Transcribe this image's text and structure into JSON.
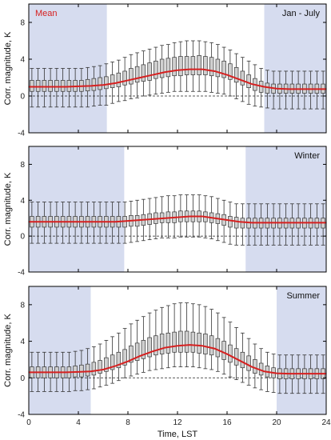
{
  "colors": {
    "night_band": "#d6dcef",
    "mean_line": "#d62020",
    "box_fill": "#d0d0d0",
    "box_stroke": "#333333",
    "axis": "#000000"
  },
  "chart_data": [
    {
      "type": "box",
      "panel_label": "Jan - July",
      "legend": "Mean",
      "ylabel": "Corr. magnitude, K",
      "xlim": [
        0,
        24
      ],
      "ylim": [
        -4,
        10
      ],
      "yticks": [
        -4,
        0,
        4,
        8
      ],
      "xticks": [
        0,
        4,
        8,
        12,
        16,
        20,
        24
      ],
      "zero_line": "dashed",
      "night_bands": [
        [
          0,
          6.3
        ],
        [
          19,
          24
        ]
      ],
      "box_hours": [
        0.25,
        0.75,
        1.25,
        1.75,
        2.25,
        2.75,
        3.25,
        3.75,
        4.25,
        4.75,
        5.25,
        5.75,
        6.25,
        6.75,
        7.25,
        7.75,
        8.25,
        8.75,
        9.25,
        9.75,
        10.25,
        10.75,
        11.25,
        11.75,
        12.25,
        12.75,
        13.25,
        13.75,
        14.25,
        14.75,
        15.25,
        15.75,
        16.25,
        16.75,
        17.25,
        17.75,
        18.25,
        18.75,
        19.25,
        19.75,
        20.25,
        20.75,
        21.25,
        21.75,
        22.25,
        22.75,
        23.25,
        23.75
      ],
      "q1": [
        0.5,
        0.5,
        0.5,
        0.5,
        0.5,
        0.5,
        0.5,
        0.5,
        0.5,
        0.55,
        0.6,
        0.7,
        0.8,
        0.9,
        1.0,
        1.2,
        1.3,
        1.5,
        1.6,
        1.7,
        1.9,
        2.0,
        2.1,
        2.2,
        2.2,
        2.3,
        2.3,
        2.3,
        2.3,
        2.2,
        2.1,
        2.0,
        1.8,
        1.5,
        1.2,
        0.9,
        0.6,
        0.4,
        0.3,
        0.3,
        0.3,
        0.3,
        0.3,
        0.3,
        0.3,
        0.3,
        0.3,
        0.3
      ],
      "q3": [
        1.7,
        1.7,
        1.7,
        1.7,
        1.7,
        1.7,
        1.7,
        1.7,
        1.7,
        1.8,
        1.9,
        2.0,
        2.1,
        2.3,
        2.5,
        2.7,
        3.0,
        3.2,
        3.4,
        3.6,
        3.8,
        4.0,
        4.1,
        4.2,
        4.3,
        4.3,
        4.3,
        4.4,
        4.3,
        4.2,
        4.0,
        3.8,
        3.5,
        3.1,
        2.7,
        2.3,
        1.9,
        1.6,
        1.4,
        1.3,
        1.3,
        1.3,
        1.3,
        1.3,
        1.3,
        1.3,
        1.3,
        1.3
      ],
      "whisker_low": [
        -1.2,
        -1.2,
        -1.2,
        -1.2,
        -1.2,
        -1.2,
        -1.2,
        -1.2,
        -1.2,
        -1.2,
        -1.1,
        -1.0,
        -1.0,
        -0.8,
        -0.6,
        -0.5,
        -0.3,
        -0.2,
        0.0,
        0.1,
        0.2,
        0.3,
        0.4,
        0.5,
        0.5,
        0.5,
        0.5,
        0.5,
        0.5,
        0.4,
        0.3,
        0.2,
        0.0,
        -0.3,
        -0.6,
        -0.9,
        -1.1,
        -1.2,
        -1.3,
        -1.4,
        -1.4,
        -1.4,
        -1.4,
        -1.4,
        -1.4,
        -1.4,
        -1.4,
        -1.4
      ],
      "whisker_high": [
        3.0,
        3.0,
        3.0,
        3.0,
        3.0,
        3.0,
        3.0,
        3.0,
        3.0,
        3.1,
        3.2,
        3.3,
        3.5,
        3.7,
        3.9,
        4.2,
        4.5,
        4.7,
        4.9,
        5.1,
        5.3,
        5.5,
        5.6,
        5.8,
        5.9,
        6.0,
        6.0,
        6.0,
        5.9,
        5.8,
        5.6,
        5.3,
        5.0,
        4.6,
        4.2,
        3.8,
        3.4,
        3.0,
        2.8,
        2.7,
        2.7,
        2.7,
        2.7,
        2.7,
        2.7,
        2.7,
        2.7,
        2.7
      ],
      "mean_x": [
        0,
        1,
        2,
        3,
        4,
        5,
        6,
        7,
        8,
        9,
        10,
        11,
        12,
        13,
        14,
        15,
        16,
        17,
        18,
        19,
        20,
        21,
        22,
        23,
        24
      ],
      "mean_y": [
        1.0,
        1.0,
        1.0,
        1.0,
        1.05,
        1.1,
        1.2,
        1.4,
        1.7,
        2.0,
        2.3,
        2.6,
        2.8,
        2.9,
        2.9,
        2.7,
        2.3,
        1.8,
        1.3,
        1.0,
        0.8,
        0.75,
        0.75,
        0.75,
        0.75
      ]
    },
    {
      "type": "box",
      "panel_label": "Winter",
      "ylabel": "Corr. magnitude, K",
      "xlim": [
        0,
        24
      ],
      "ylim": [
        -4,
        10
      ],
      "yticks": [
        -4,
        0,
        4,
        8
      ],
      "xticks": [
        0,
        4,
        8,
        12,
        16,
        20,
        24
      ],
      "zero_line": "dashed",
      "night_bands": [
        [
          0,
          7.7
        ],
        [
          17.5,
          24
        ]
      ],
      "box_hours": [
        0.25,
        0.75,
        1.25,
        1.75,
        2.25,
        2.75,
        3.25,
        3.75,
        4.25,
        4.75,
        5.25,
        5.75,
        6.25,
        6.75,
        7.25,
        7.75,
        8.25,
        8.75,
        9.25,
        9.75,
        10.25,
        10.75,
        11.25,
        11.75,
        12.25,
        12.75,
        13.25,
        13.75,
        14.25,
        14.75,
        15.25,
        15.75,
        16.25,
        16.75,
        17.25,
        17.75,
        18.25,
        18.75,
        19.25,
        19.75,
        20.25,
        20.75,
        21.25,
        21.75,
        22.25,
        22.75,
        23.25,
        23.75
      ],
      "q1": [
        1.0,
        1.0,
        1.0,
        1.0,
        1.0,
        1.0,
        1.0,
        1.0,
        1.0,
        1.0,
        1.0,
        1.0,
        1.0,
        1.0,
        1.0,
        1.0,
        1.1,
        1.1,
        1.2,
        1.3,
        1.4,
        1.5,
        1.5,
        1.5,
        1.6,
        1.6,
        1.6,
        1.6,
        1.6,
        1.5,
        1.4,
        1.2,
        1.0,
        0.9,
        0.9,
        0.9,
        0.9,
        0.9,
        0.9,
        0.9,
        0.9,
        0.9,
        0.9,
        0.9,
        0.9,
        0.9,
        0.9,
        0.9
      ],
      "q3": [
        2.2,
        2.2,
        2.2,
        2.2,
        2.2,
        2.2,
        2.2,
        2.2,
        2.2,
        2.2,
        2.2,
        2.2,
        2.2,
        2.2,
        2.2,
        2.2,
        2.3,
        2.3,
        2.4,
        2.5,
        2.6,
        2.6,
        2.7,
        2.7,
        2.8,
        2.8,
        2.8,
        2.8,
        2.7,
        2.6,
        2.5,
        2.4,
        2.2,
        2.1,
        2.0,
        2.0,
        2.0,
        2.0,
        2.0,
        2.0,
        2.0,
        2.0,
        2.0,
        2.0,
        2.0,
        2.0,
        2.0,
        2.0
      ],
      "whisker_low": [
        -0.8,
        -0.8,
        -0.8,
        -0.8,
        -0.8,
        -0.8,
        -0.8,
        -0.8,
        -0.8,
        -0.8,
        -0.8,
        -0.8,
        -0.8,
        -0.8,
        -0.8,
        -0.8,
        -0.7,
        -0.6,
        -0.5,
        -0.4,
        -0.3,
        -0.2,
        -0.2,
        -0.2,
        -0.1,
        -0.1,
        -0.1,
        -0.1,
        -0.2,
        -0.3,
        -0.5,
        -0.7,
        -0.9,
        -1.0,
        -1.0,
        -1.0,
        -1.0,
        -1.0,
        -1.0,
        -1.0,
        -1.0,
        -1.0,
        -1.0,
        -1.0,
        -1.0,
        -1.0,
        -1.0,
        -1.0
      ],
      "whisker_high": [
        3.8,
        3.8,
        3.8,
        3.8,
        3.8,
        3.8,
        3.8,
        3.8,
        3.8,
        3.8,
        3.8,
        3.8,
        3.8,
        3.8,
        3.8,
        3.8,
        3.9,
        4.0,
        4.1,
        4.2,
        4.3,
        4.4,
        4.5,
        4.5,
        4.6,
        4.6,
        4.6,
        4.6,
        4.5,
        4.4,
        4.2,
        4.0,
        3.8,
        3.6,
        3.6,
        3.6,
        3.6,
        3.6,
        3.6,
        3.6,
        3.6,
        3.6,
        3.6,
        3.6,
        3.6,
        3.6,
        3.6,
        3.6
      ],
      "mean_x": [
        0,
        1,
        2,
        3,
        4,
        5,
        6,
        7,
        8,
        9,
        10,
        11,
        12,
        13,
        14,
        15,
        16,
        17,
        18,
        19,
        20,
        21,
        22,
        23,
        24
      ],
      "mean_y": [
        1.6,
        1.6,
        1.6,
        1.6,
        1.6,
        1.6,
        1.6,
        1.6,
        1.7,
        1.8,
        1.9,
        2.0,
        2.1,
        2.2,
        2.2,
        2.0,
        1.8,
        1.6,
        1.5,
        1.5,
        1.5,
        1.5,
        1.5,
        1.5,
        1.5
      ]
    },
    {
      "type": "box",
      "panel_label": "Summer",
      "ylabel": "Corr. magnitude, K",
      "xlabel": "Time, LST",
      "xlim": [
        0,
        24
      ],
      "ylim": [
        -4,
        10
      ],
      "yticks": [
        -4,
        0,
        4,
        8
      ],
      "xticks": [
        0,
        4,
        8,
        12,
        16,
        20,
        24
      ],
      "zero_line": "dashed",
      "night_bands": [
        [
          0,
          5.0
        ],
        [
          20,
          24
        ]
      ],
      "box_hours": [
        0.25,
        0.75,
        1.25,
        1.75,
        2.25,
        2.75,
        3.25,
        3.75,
        4.25,
        4.75,
        5.25,
        5.75,
        6.25,
        6.75,
        7.25,
        7.75,
        8.25,
        8.75,
        9.25,
        9.75,
        10.25,
        10.75,
        11.25,
        11.75,
        12.25,
        12.75,
        13.25,
        13.75,
        14.25,
        14.75,
        15.25,
        15.75,
        16.25,
        16.75,
        17.25,
        17.75,
        18.25,
        18.75,
        19.25,
        19.75,
        20.25,
        20.75,
        21.25,
        21.75,
        22.25,
        22.75,
        23.25,
        23.75
      ],
      "q1": [
        0.0,
        0.0,
        0.0,
        0.0,
        0.0,
        0.0,
        0.0,
        0.1,
        0.1,
        0.2,
        0.3,
        0.5,
        0.7,
        0.9,
        1.1,
        1.4,
        1.7,
        1.9,
        2.1,
        2.3,
        2.5,
        2.6,
        2.7,
        2.8,
        2.8,
        2.8,
        2.8,
        2.7,
        2.6,
        2.5,
        2.3,
        2.0,
        1.7,
        1.4,
        1.1,
        0.8,
        0.5,
        0.3,
        0.1,
        0.0,
        -0.1,
        -0.1,
        -0.1,
        -0.1,
        -0.1,
        -0.1,
        -0.1,
        -0.1
      ],
      "q3": [
        1.2,
        1.2,
        1.2,
        1.2,
        1.2,
        1.2,
        1.2,
        1.3,
        1.4,
        1.5,
        1.7,
        1.9,
        2.2,
        2.5,
        2.8,
        3.1,
        3.5,
        3.8,
        4.1,
        4.4,
        4.6,
        4.8,
        4.9,
        5.0,
        5.1,
        5.1,
        5.0,
        4.9,
        4.8,
        4.6,
        4.3,
        4.0,
        3.6,
        3.2,
        2.8,
        2.4,
        2.0,
        1.6,
        1.3,
        1.1,
        1.0,
        1.0,
        1.0,
        1.0,
        1.0,
        1.0,
        1.0,
        1.0
      ],
      "whisker_low": [
        -1.5,
        -1.5,
        -1.5,
        -1.5,
        -1.5,
        -1.5,
        -1.5,
        -1.4,
        -1.4,
        -1.3,
        -1.2,
        -1.0,
        -0.8,
        -0.6,
        -0.3,
        0.0,
        0.2,
        0.4,
        0.6,
        0.8,
        0.9,
        1.0,
        1.1,
        1.2,
        1.2,
        1.2,
        1.2,
        1.1,
        1.0,
        0.9,
        0.7,
        0.4,
        0.1,
        -0.2,
        -0.5,
        -0.8,
        -1.1,
        -1.3,
        -1.5,
        -1.6,
        -1.7,
        -1.7,
        -1.7,
        -1.7,
        -1.7,
        -1.7,
        -1.7,
        -1.7
      ],
      "whisker_high": [
        2.8,
        2.8,
        2.8,
        2.8,
        2.8,
        2.8,
        2.8,
        2.9,
        3.0,
        3.2,
        3.4,
        3.7,
        4.1,
        4.5,
        4.9,
        5.4,
        5.9,
        6.3,
        6.7,
        7.1,
        7.4,
        7.7,
        7.9,
        8.1,
        8.2,
        8.2,
        8.1,
        8.0,
        7.8,
        7.5,
        7.1,
        6.6,
        6.1,
        5.5,
        4.9,
        4.3,
        3.7,
        3.2,
        2.8,
        2.6,
        2.5,
        2.5,
        2.5,
        2.5,
        2.5,
        2.5,
        2.5,
        2.5
      ],
      "mean_x": [
        0,
        1,
        2,
        3,
        4,
        5,
        6,
        7,
        8,
        9,
        10,
        11,
        12,
        13,
        14,
        15,
        16,
        17,
        18,
        19,
        20,
        21,
        22,
        23,
        24
      ],
      "mean_y": [
        0.6,
        0.6,
        0.6,
        0.6,
        0.65,
        0.7,
        0.9,
        1.3,
        1.8,
        2.4,
        2.9,
        3.3,
        3.5,
        3.6,
        3.5,
        3.2,
        2.6,
        1.9,
        1.2,
        0.7,
        0.5,
        0.45,
        0.45,
        0.45,
        0.45
      ]
    }
  ]
}
